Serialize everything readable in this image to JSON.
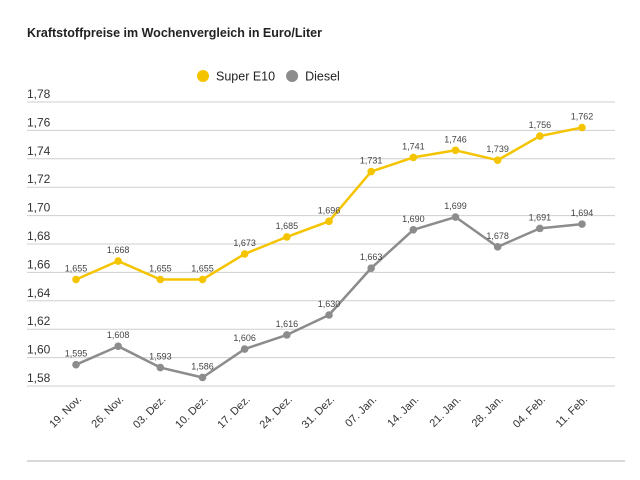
{
  "chart_data": {
    "type": "line",
    "title": "Kraftstoffpreise im Wochenvergleich in Euro/Liter",
    "xlabel": "",
    "ylabel": "",
    "categories": [
      "19. Nov.",
      "26. Nov.",
      "03. Dez.",
      "10. Dez.",
      "17. Dez.",
      "24. Dez.",
      "31. Dez.",
      "07. Jan.",
      "14. Jan.",
      "21. Jan.",
      "28. Jan.",
      "04. Feb.",
      "11. Feb."
    ],
    "ylim": [
      1.58,
      1.78
    ],
    "yticks": [
      "1,58",
      "1,60",
      "1,62",
      "1,64",
      "1,66",
      "1,68",
      "1,70",
      "1,72",
      "1,74",
      "1,76",
      "1,78"
    ],
    "grid": true,
    "legend_position": "top-center",
    "series": [
      {
        "name": "Super E10",
        "color": "#f5c400",
        "values": [
          1.655,
          1.668,
          1.655,
          1.655,
          1.673,
          1.685,
          1.696,
          1.731,
          1.741,
          1.746,
          1.739,
          1.756,
          1.762
        ],
        "labels": [
          "1,655",
          "1,668",
          "1,655",
          "1,655",
          "1,673",
          "1,685",
          "1,696",
          "1,731",
          "1,741",
          "1,746",
          "1,739",
          "1,756",
          "1,762"
        ]
      },
      {
        "name": "Diesel",
        "color": "#8c8c8c",
        "values": [
          1.595,
          1.608,
          1.593,
          1.586,
          1.606,
          1.616,
          1.63,
          1.663,
          1.69,
          1.699,
          1.678,
          1.691,
          1.694
        ],
        "labels": [
          "1,595",
          "1,608",
          "1,593",
          "1,586",
          "1,606",
          "1,616",
          "1,630",
          "1,663",
          "1,690",
          "1,699",
          "1,678",
          "1,691",
          "1,694"
        ]
      }
    ]
  }
}
